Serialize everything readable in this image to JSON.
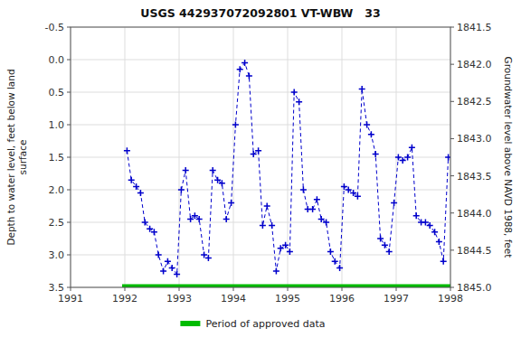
{
  "chart_data": {
    "type": "line",
    "title": "USGS 442937072092801 VT-WBW   33",
    "y_label": "Depth to water level, feet below land\nsurface",
    "y2_label": "Groundwater level above NAVD 1988, feet",
    "xlim": [
      1991,
      1998
    ],
    "xticks": [
      1991,
      1992,
      1993,
      1994,
      1995,
      1996,
      1997,
      1998
    ],
    "ylim": [
      3.5,
      -0.5
    ],
    "yticks": [
      -0.5,
      {
        "value": 0.0,
        "label": "0.0"
      },
      0.5,
      {
        "value": 1.0,
        "label": "1.0"
      },
      1.5,
      {
        "value": 2.0,
        "label": "2.0"
      },
      2.5,
      {
        "value": 3.0,
        "label": "3.0"
      },
      3.5
    ],
    "y2lim": [
      1845.0,
      1841.5
    ],
    "y2ticks": [
      1841.5,
      {
        "value": 1842.0,
        "label": "1842.0"
      },
      1842.5,
      {
        "value": 1843.0,
        "label": "1843.0"
      },
      1843.5,
      {
        "value": 1844.0,
        "label": "1844.0"
      },
      1844.5,
      {
        "value": 1845.0,
        "label": "1845.0"
      }
    ],
    "grid": true,
    "legend": "bottom",
    "series": [
      {
        "type": "line",
        "color": "#0000cc",
        "marker": "plus",
        "line_style": "dashed",
        "x": [
          1992.04,
          1992.12,
          1992.21,
          1992.29,
          1992.37,
          1992.46,
          1992.54,
          1992.62,
          1992.71,
          1992.79,
          1992.87,
          1992.96,
          1993.04,
          1993.12,
          1993.21,
          1993.29,
          1993.37,
          1993.46,
          1993.54,
          1993.62,
          1993.71,
          1993.79,
          1993.87,
          1993.96,
          1994.04,
          1994.12,
          1994.21,
          1994.29,
          1994.37,
          1994.46,
          1994.54,
          1994.62,
          1994.71,
          1994.79,
          1994.87,
          1994.96,
          1995.04,
          1995.12,
          1995.21,
          1995.29,
          1995.37,
          1995.46,
          1995.54,
          1995.62,
          1995.71,
          1995.79,
          1995.87,
          1995.96,
          1996.04,
          1996.12,
          1996.21,
          1996.29,
          1996.37,
          1996.46,
          1996.54,
          1996.62,
          1996.71,
          1996.79,
          1996.87,
          1996.96,
          1997.04,
          1997.12,
          1997.21,
          1997.29,
          1997.37,
          1997.46,
          1997.54,
          1997.62,
          1997.71,
          1997.79,
          1997.87,
          1997.96
        ],
        "values": [
          1.4,
          1.85,
          1.95,
          2.05,
          2.5,
          2.6,
          2.65,
          3.0,
          3.25,
          3.1,
          3.2,
          3.3,
          2.0,
          1.7,
          2.45,
          2.4,
          2.45,
          3.0,
          3.05,
          1.7,
          1.85,
          1.9,
          2.45,
          2.2,
          1.0,
          0.15,
          0.05,
          0.25,
          1.45,
          1.4,
          2.55,
          2.25,
          2.55,
          3.25,
          2.9,
          2.85,
          2.95,
          0.5,
          0.65,
          2.0,
          2.3,
          2.3,
          2.15,
          2.45,
          2.5,
          2.95,
          3.1,
          3.2,
          1.95,
          2.0,
          2.05,
          2.1,
          0.45,
          1.0,
          1.15,
          1.45,
          2.75,
          2.85,
          2.95,
          2.2,
          1.5,
          1.55,
          1.5,
          1.35,
          2.4,
          2.5,
          2.5,
          2.55,
          2.65,
          2.8,
          3.1,
          1.5
        ]
      },
      {
        "type": "band",
        "name": "Period of approved data",
        "color": "#00bb00",
        "x": [
          1991.95,
          1998.0
        ],
        "values": [
          3.5,
          3.5
        ]
      }
    ]
  }
}
